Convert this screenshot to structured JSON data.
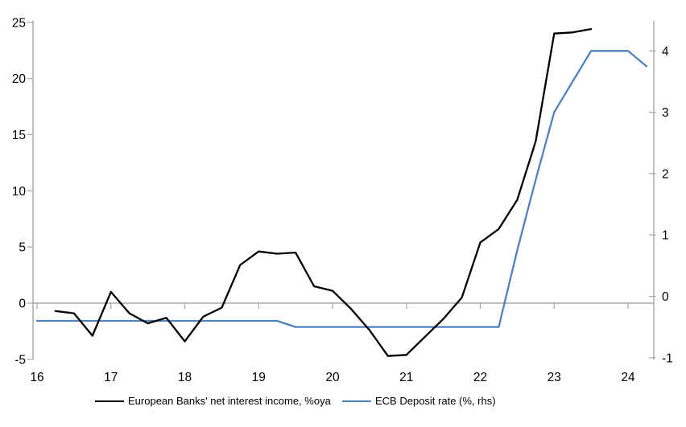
{
  "chart_data": {
    "type": "line",
    "title": "",
    "grid": "zero-line-only",
    "x_axis": {
      "ticks": [
        16,
        17,
        18,
        19,
        20,
        21,
        22,
        23,
        24
      ],
      "range": [
        16,
        24.35
      ],
      "unit": "year"
    },
    "left_y_axis": {
      "ticks": [
        -5,
        0,
        5,
        10,
        15,
        20,
        25
      ],
      "range": [
        -5,
        25
      ],
      "label": ""
    },
    "right_y_axis": {
      "ticks": [
        -1,
        0,
        1,
        2,
        3,
        4
      ],
      "range": [
        -1,
        4.5
      ],
      "label": ""
    },
    "series": [
      {
        "name": "European Banks' net interest income, %oya",
        "axis": "left",
        "color": "#000000",
        "x": [
          16.25,
          16.5,
          16.75,
          17.0,
          17.25,
          17.5,
          17.75,
          18.0,
          18.25,
          18.5,
          18.75,
          19.0,
          19.25,
          19.5,
          19.75,
          20.0,
          20.25,
          20.5,
          20.75,
          21.0,
          21.25,
          21.5,
          21.75,
          22.0,
          22.25,
          22.5,
          22.75,
          23.0,
          23.25,
          23.5
        ],
        "values": [
          -0.7,
          -0.9,
          -2.9,
          1.0,
          -0.9,
          -1.8,
          -1.3,
          -3.4,
          -1.2,
          -0.4,
          3.4,
          4.6,
          4.4,
          4.5,
          1.5,
          1.1,
          -0.5,
          -2.4,
          -4.7,
          -4.6,
          -3.0,
          -1.4,
          0.5,
          5.4,
          6.6,
          9.2,
          14.4,
          24.0,
          24.1,
          24.4
        ]
      },
      {
        "name": "ECB Deposit rate (%, rhs)",
        "axis": "right",
        "color": "#4f81bd",
        "x": [
          16.0,
          16.25,
          16.5,
          16.75,
          17.0,
          17.25,
          17.5,
          17.75,
          18.0,
          18.25,
          18.5,
          18.75,
          19.0,
          19.25,
          19.5,
          19.75,
          20.0,
          20.25,
          20.5,
          20.75,
          21.0,
          21.25,
          21.5,
          21.75,
          22.0,
          22.25,
          22.5,
          22.75,
          23.0,
          23.25,
          23.5,
          23.75,
          24.0,
          24.25
        ],
        "values": [
          -0.4,
          -0.4,
          -0.4,
          -0.4,
          -0.4,
          -0.4,
          -0.4,
          -0.4,
          -0.4,
          -0.4,
          -0.4,
          -0.4,
          -0.4,
          -0.4,
          -0.5,
          -0.5,
          -0.5,
          -0.5,
          -0.5,
          -0.5,
          -0.5,
          -0.5,
          -0.5,
          -0.5,
          -0.5,
          -0.5,
          0.75,
          1.9,
          3.0,
          3.5,
          4.0,
          4.0,
          4.0,
          3.75
        ]
      }
    ],
    "legend": {
      "position": "bottom"
    },
    "axis_color": "#a6a6a6"
  }
}
